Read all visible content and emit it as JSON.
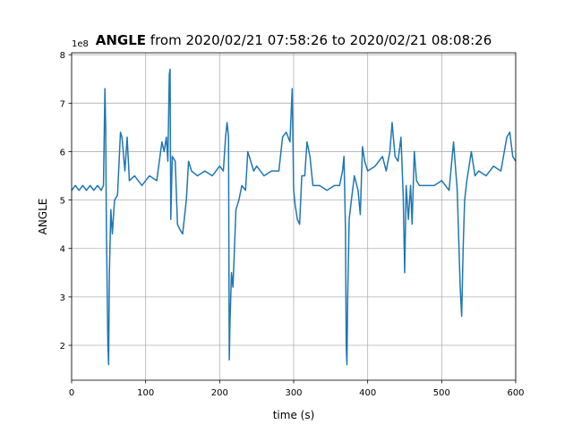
{
  "chart_data": {
    "type": "line",
    "title": {
      "bold": "ANGLE",
      "rest": "from 2020/02/21 07:58:26 to 2020/02/21 08:08:26"
    },
    "x_label": "time (s)",
    "y_label": "ANGLE",
    "y_offset_text": "1e8",
    "xlim": [
      0,
      600
    ],
    "xticks": [
      0,
      100,
      200,
      300,
      400,
      500,
      600
    ],
    "ylim": [
      1.28,
      8.04
    ],
    "yticks": [
      2,
      3,
      4,
      5,
      6,
      7,
      8
    ],
    "grid": true,
    "series": [
      {
        "color": "#1f77b4",
        "x": [
          0,
          5,
          10,
          15,
          20,
          25,
          30,
          35,
          40,
          43,
          45,
          46,
          47,
          49,
          50,
          51,
          53,
          55,
          58,
          62,
          66,
          68,
          72,
          75,
          78,
          85,
          95,
          105,
          115,
          122,
          125,
          128,
          130,
          132,
          133,
          134,
          136,
          140,
          143,
          146,
          150,
          155,
          158,
          162,
          170,
          180,
          190,
          200,
          205,
          208,
          210,
          212,
          213,
          214,
          216,
          218,
          222,
          226,
          230,
          235,
          238,
          242,
          246,
          250,
          260,
          270,
          280,
          285,
          290,
          295,
          298,
          300,
          302,
          305,
          308,
          311,
          315,
          318,
          322,
          326,
          335,
          345,
          355,
          362,
          366,
          368,
          370,
          371,
          372,
          373,
          375,
          378,
          382,
          387,
          390,
          393,
          396,
          400,
          410,
          420,
          425,
          430,
          433,
          437,
          441,
          445,
          448,
          450,
          452,
          455,
          458,
          460,
          463,
          466,
          470,
          480,
          490,
          500,
          510,
          516,
          518,
          521,
          525,
          527,
          529,
          531,
          534,
          537,
          540,
          545,
          550,
          560,
          570,
          580,
          588,
          592,
          596,
          600
        ],
        "values": [
          5.2,
          5.3,
          5.2,
          5.3,
          5.2,
          5.3,
          5.2,
          5.3,
          5.2,
          5.3,
          7.3,
          6.5,
          4.4,
          2.0,
          1.6,
          3.5,
          4.8,
          4.3,
          5.0,
          5.1,
          6.4,
          6.3,
          5.6,
          6.3,
          5.4,
          5.5,
          5.3,
          5.5,
          5.4,
          6.2,
          6.0,
          6.3,
          5.8,
          7.6,
          7.7,
          4.6,
          5.9,
          5.8,
          4.5,
          4.4,
          4.3,
          5.0,
          5.8,
          5.6,
          5.5,
          5.6,
          5.5,
          5.7,
          5.6,
          6.3,
          6.6,
          6.3,
          1.7,
          2.5,
          3.5,
          3.2,
          4.8,
          5.0,
          5.3,
          5.2,
          6.0,
          5.8,
          5.6,
          5.7,
          5.5,
          5.6,
          5.6,
          6.3,
          6.4,
          6.2,
          7.3,
          5.2,
          4.9,
          4.6,
          4.5,
          5.5,
          5.5,
          6.2,
          5.9,
          5.3,
          5.3,
          5.2,
          5.3,
          5.3,
          5.6,
          5.9,
          4.4,
          2.0,
          1.6,
          3.0,
          4.6,
          5.0,
          5.5,
          5.2,
          4.7,
          6.1,
          5.8,
          5.6,
          5.7,
          5.9,
          5.6,
          6.0,
          6.6,
          5.9,
          5.8,
          6.3,
          5.1,
          3.5,
          5.3,
          4.6,
          5.3,
          4.5,
          6.0,
          5.4,
          5.3,
          5.3,
          5.3,
          5.4,
          5.2,
          6.2,
          5.8,
          5.2,
          3.2,
          2.6,
          4.0,
          5.0,
          5.4,
          5.7,
          6.0,
          5.5,
          5.6,
          5.5,
          5.7,
          5.6,
          6.3,
          6.4,
          5.9,
          5.8
        ]
      }
    ]
  }
}
